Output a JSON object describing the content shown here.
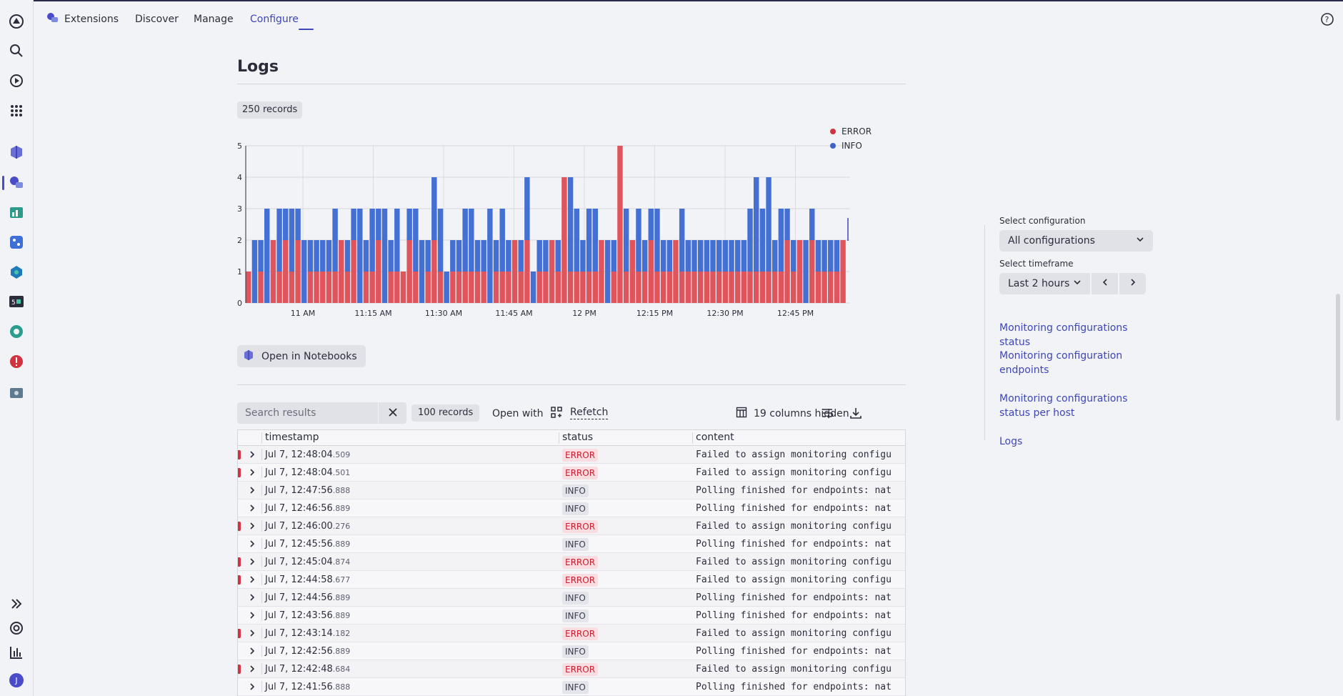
{
  "topbar": {
    "app_label": "Extensions",
    "tabs": [
      {
        "label": "Discover"
      },
      {
        "label": "Manage"
      },
      {
        "label": "Configure",
        "active": true
      }
    ]
  },
  "rail": {
    "icons": [
      "dynatrace-logo-icon",
      "search-icon",
      "play-circle-icon",
      "apps-grid-icon",
      "hub-icon",
      "extensions-icon",
      "dashboards-icon",
      "workflows-icon",
      "kubernetes-icon",
      "terminal-icon",
      "observability-icon",
      "problems-icon",
      "settings-icon"
    ],
    "bottom_icons": [
      "expand-icon",
      "support-icon",
      "chart-icon",
      "avatar"
    ],
    "avatar_initial": "J"
  },
  "page": {
    "title": "Logs",
    "records_chip": "250 records",
    "open_notebooks": "Open in Notebooks"
  },
  "chart_data": {
    "type": "bar",
    "stacked": true,
    "ylim": [
      0,
      5
    ],
    "yticks": [
      "0",
      "1",
      "2",
      "3",
      "4",
      "5"
    ],
    "xticks": [
      "11 AM",
      "11:15 AM",
      "11:30 AM",
      "11:45 AM",
      "12 PM",
      "12:15 PM",
      "12:30 PM",
      "12:45 PM"
    ],
    "series": [
      {
        "name": "ERROR",
        "color": "#e0555c",
        "values": [
          1,
          0,
          1,
          0,
          2,
          1,
          2,
          1,
          2,
          0,
          1,
          1,
          1,
          1,
          1,
          2,
          1,
          2,
          0,
          1,
          1,
          2,
          0,
          1,
          1,
          1,
          2,
          1,
          0,
          1,
          2,
          1,
          0,
          1,
          1,
          1,
          1,
          1,
          1,
          0,
          1,
          1,
          1,
          2,
          1,
          2,
          0,
          1,
          1,
          2,
          1,
          4,
          1,
          1,
          1,
          1,
          1,
          2,
          0,
          1,
          5,
          1,
          2,
          1,
          1,
          2,
          1,
          1,
          1,
          2,
          1,
          1,
          1,
          1,
          1,
          1,
          1,
          1,
          1,
          1,
          1,
          1,
          1,
          1,
          1,
          1,
          1,
          2,
          1,
          2,
          0,
          2,
          1,
          1,
          1,
          1,
          2
        ]
      },
      {
        "name": "INFO",
        "color": "#4470d4",
        "values": [
          0,
          2,
          1,
          3,
          0,
          2,
          1,
          2,
          1,
          2,
          1,
          1,
          1,
          1,
          2,
          0,
          1,
          1,
          3,
          1,
          2,
          1,
          3,
          1,
          2,
          0,
          1,
          2,
          2,
          1,
          2,
          2,
          1,
          1,
          1,
          2,
          2,
          1,
          1,
          3,
          1,
          2,
          1,
          0,
          1,
          2,
          1,
          1,
          1,
          0,
          1,
          0,
          3,
          2,
          1,
          2,
          2,
          0,
          2,
          1,
          0,
          2,
          0,
          2,
          1,
          1,
          2,
          1,
          1,
          0,
          2,
          1,
          1,
          1,
          1,
          1,
          1,
          1,
          1,
          1,
          1,
          2,
          3,
          2,
          3,
          1,
          2,
          1,
          1,
          0,
          2,
          1,
          1,
          1,
          1,
          1,
          0
        ]
      }
    ],
    "legend": "top-right"
  },
  "toolbar": {
    "search_placeholder": "Search results",
    "records": "100 records",
    "open_with": "Open with",
    "refetch": "Refetch",
    "columns_hidden": "19 columns hidden"
  },
  "table": {
    "columns": [
      "timestamp",
      "status",
      "content"
    ],
    "rows": [
      {
        "ts": "Jul 7, 12:48:04",
        "ms": ".509",
        "status": "ERROR",
        "content": "Failed to assign monitoring configu"
      },
      {
        "ts": "Jul 7, 12:48:04",
        "ms": ".501",
        "status": "ERROR",
        "content": "Failed to assign monitoring configu"
      },
      {
        "ts": "Jul 7, 12:47:56",
        "ms": ".888",
        "status": "INFO",
        "content": "Polling finished for endpoints: nat"
      },
      {
        "ts": "Jul 7, 12:46:56",
        "ms": ".889",
        "status": "INFO",
        "content": "Polling finished for endpoints: nat"
      },
      {
        "ts": "Jul 7, 12:46:00",
        "ms": ".276",
        "status": "ERROR",
        "content": "Failed to assign monitoring configu"
      },
      {
        "ts": "Jul 7, 12:45:56",
        "ms": ".889",
        "status": "INFO",
        "content": "Polling finished for endpoints: nat"
      },
      {
        "ts": "Jul 7, 12:45:04",
        "ms": ".874",
        "status": "ERROR",
        "content": "Failed to assign monitoring configu"
      },
      {
        "ts": "Jul 7, 12:44:58",
        "ms": ".677",
        "status": "ERROR",
        "content": "Failed to assign monitoring configu"
      },
      {
        "ts": "Jul 7, 12:44:56",
        "ms": ".889",
        "status": "INFO",
        "content": "Polling finished for endpoints: nat"
      },
      {
        "ts": "Jul 7, 12:43:56",
        "ms": ".889",
        "status": "INFO",
        "content": "Polling finished for endpoints: nat"
      },
      {
        "ts": "Jul 7, 12:43:14",
        "ms": ".182",
        "status": "ERROR",
        "content": "Failed to assign monitoring configu"
      },
      {
        "ts": "Jul 7, 12:42:56",
        "ms": ".889",
        "status": "INFO",
        "content": "Polling finished for endpoints: nat"
      },
      {
        "ts": "Jul 7, 12:42:48",
        "ms": ".684",
        "status": "ERROR",
        "content": "Failed to assign monitoring configu"
      },
      {
        "ts": "Jul 7, 12:41:56",
        "ms": ".888",
        "status": "INFO",
        "content": "Polling finished for endpoints: nat"
      }
    ]
  },
  "sidebar": {
    "config_label": "Select configuration",
    "config_value": "All configurations",
    "timeframe_label": "Select timeframe",
    "timeframe_value": "Last 2 hours",
    "links": [
      "Monitoring configurations status",
      "Monitoring configuration endpoints",
      "Monitoring configurations status per host",
      "Logs"
    ]
  },
  "colors": {
    "accent": "#3f46b8",
    "error": "#e0555c",
    "info": "#4470d4"
  }
}
